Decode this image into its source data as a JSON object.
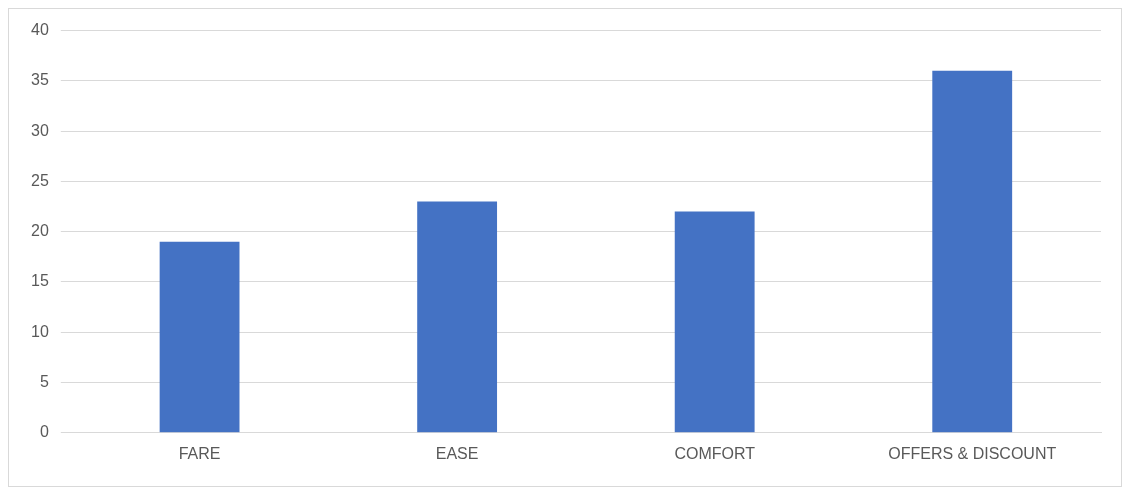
{
  "chart_data": {
    "type": "bar",
    "categories": [
      "FARE",
      "EASE",
      "COMFORT",
      "OFFERS & DISCOUNT"
    ],
    "values": [
      19,
      23,
      22,
      36
    ],
    "color": "#4472c4",
    "ylim": [
      0,
      40
    ],
    "yticks": [
      0,
      5,
      10,
      15,
      20,
      25,
      30,
      35,
      40
    ],
    "grid": "y",
    "legend": false
  }
}
